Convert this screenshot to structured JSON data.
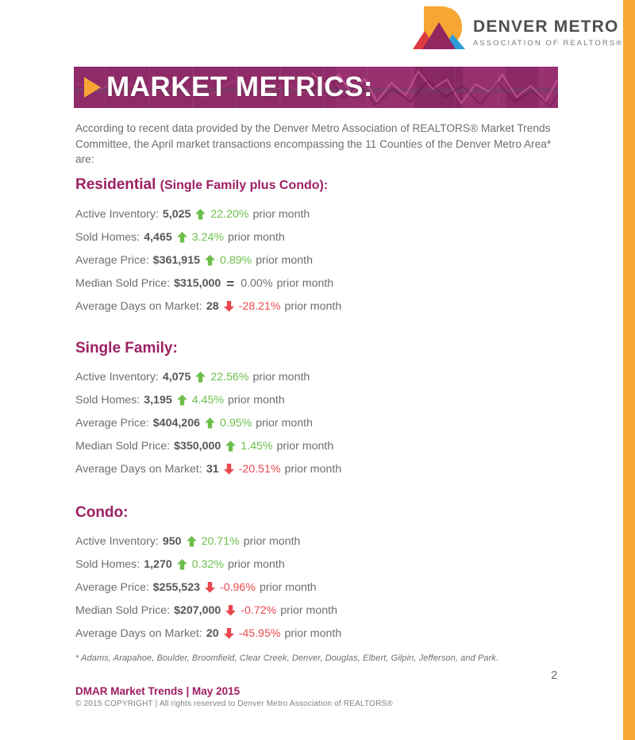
{
  "logo": {
    "name": "DENVER METRO",
    "tagline": "ASSOCIATION OF REALTORS®"
  },
  "banner": {
    "title": "MARKET METRICS:"
  },
  "intro": "According to recent data provided by the Denver Metro Association of REALTORS® Market Trends Committee, the April market transactions encompassing the 11 Counties of the Denver Metro Area* are:",
  "sections": [
    {
      "title": "Residential",
      "subtitle": "(Single Family plus Condo):",
      "stats": [
        {
          "label": "Active Inventory:",
          "value": "5,025",
          "direction": "up",
          "change": "22.20%",
          "suffix": "prior month"
        },
        {
          "label": "Sold Homes:",
          "value": "4,465",
          "direction": "up",
          "change": "3.24%",
          "suffix": "prior month"
        },
        {
          "label": "Average Price:",
          "value": "$361,915",
          "direction": "up",
          "change": "0.89%",
          "suffix": "prior month"
        },
        {
          "label": "Median Sold Price:",
          "value": "$315,000",
          "direction": "flat",
          "change": "0.00%",
          "suffix": "prior month"
        },
        {
          "label": "Average Days on Market:",
          "value": "28",
          "direction": "down",
          "change": "-28.21%",
          "suffix": "prior month"
        }
      ]
    },
    {
      "title": "Single Family:",
      "subtitle": "",
      "stats": [
        {
          "label": "Active Inventory:",
          "value": "4,075",
          "direction": "up",
          "change": "22.56%",
          "suffix": "prior month"
        },
        {
          "label": "Sold Homes:",
          "value": "3,195",
          "direction": "up",
          "change": "4.45%",
          "suffix": "prior month"
        },
        {
          "label": "Average Price:",
          "value": "$404,206",
          "direction": "up",
          "change": "0.95%",
          "suffix": "prior month"
        },
        {
          "label": "Median Sold Price:",
          "value": "$350,000",
          "direction": "up",
          "change": "1.45%",
          "suffix": "prior month"
        },
        {
          "label": "Average Days on Market:",
          "value": "31",
          "direction": "down",
          "change": "-20.51%",
          "suffix": "prior month"
        }
      ]
    },
    {
      "title": "Condo:",
      "subtitle": "",
      "stats": [
        {
          "label": "Active Inventory:",
          "value": "950",
          "direction": "up",
          "change": "20.71%",
          "suffix": "prior month"
        },
        {
          "label": "Sold Homes:",
          "value": "1,270",
          "direction": "up",
          "change": "0.32%",
          "suffix": "prior month"
        },
        {
          "label": "Average Price:",
          "value": "$255,523",
          "direction": "down",
          "change": "-0.96%",
          "suffix": "prior month"
        },
        {
          "label": "Median Sold Price:",
          "value": "$207,000",
          "direction": "down",
          "change": "-0.72%",
          "suffix": "prior month"
        },
        {
          "label": "Average Days on Market:",
          "value": "20",
          "direction": "down",
          "change": "-45.95%",
          "suffix": "prior month"
        }
      ]
    }
  ],
  "footnote": "* Adams, Arapahoe, Boulder, Broomfield, Clear Creek, Denver, Douglas, Elbert, Gilpin, Jefferson, and Park.",
  "footer": {
    "brand_line": "DMAR Market Trends | May 2015",
    "copyright_line": "© 2015 COPYRIGHT | All rights reserved to Denver Metro Association of REALTORS®"
  },
  "page_number": "2",
  "colors": {
    "accent_orange": "#f7a634",
    "banner_purple": "#8e2b68",
    "heading_magenta": "#9c2063",
    "positive_green": "#6cbe4b",
    "negative_red": "#e9494d",
    "body_gray": "#6d6e70"
  }
}
